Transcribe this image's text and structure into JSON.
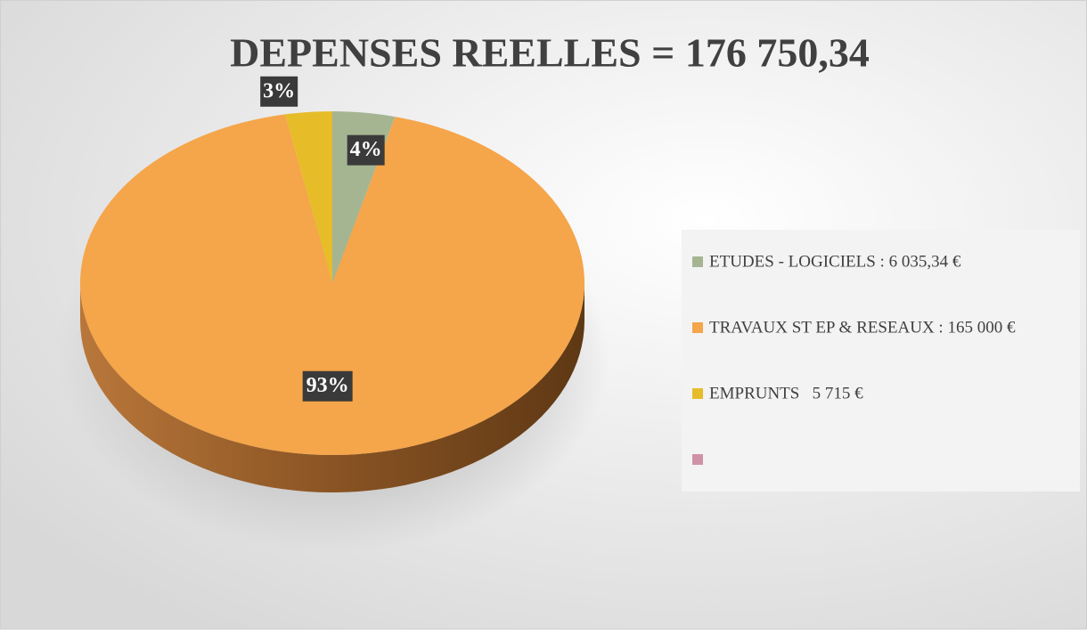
{
  "chart_data": {
    "type": "pie",
    "title": "DEPENSES REELLES = 176 750,34",
    "categories": [
      "ETUDES - LOGICIELS : 6 035,34 €",
      "TRAVAUX ST EP & RESEAUX : 165 000 €",
      "EMPRUNTS   5 715 €",
      null
    ],
    "values": [
      4,
      93,
      3,
      0
    ],
    "value_labels": [
      "4%",
      "93%",
      "3%",
      null
    ],
    "colors": [
      "#a5b592",
      "#f5a54a",
      "#e7bc29",
      "#d092a7"
    ],
    "legend": "right"
  }
}
